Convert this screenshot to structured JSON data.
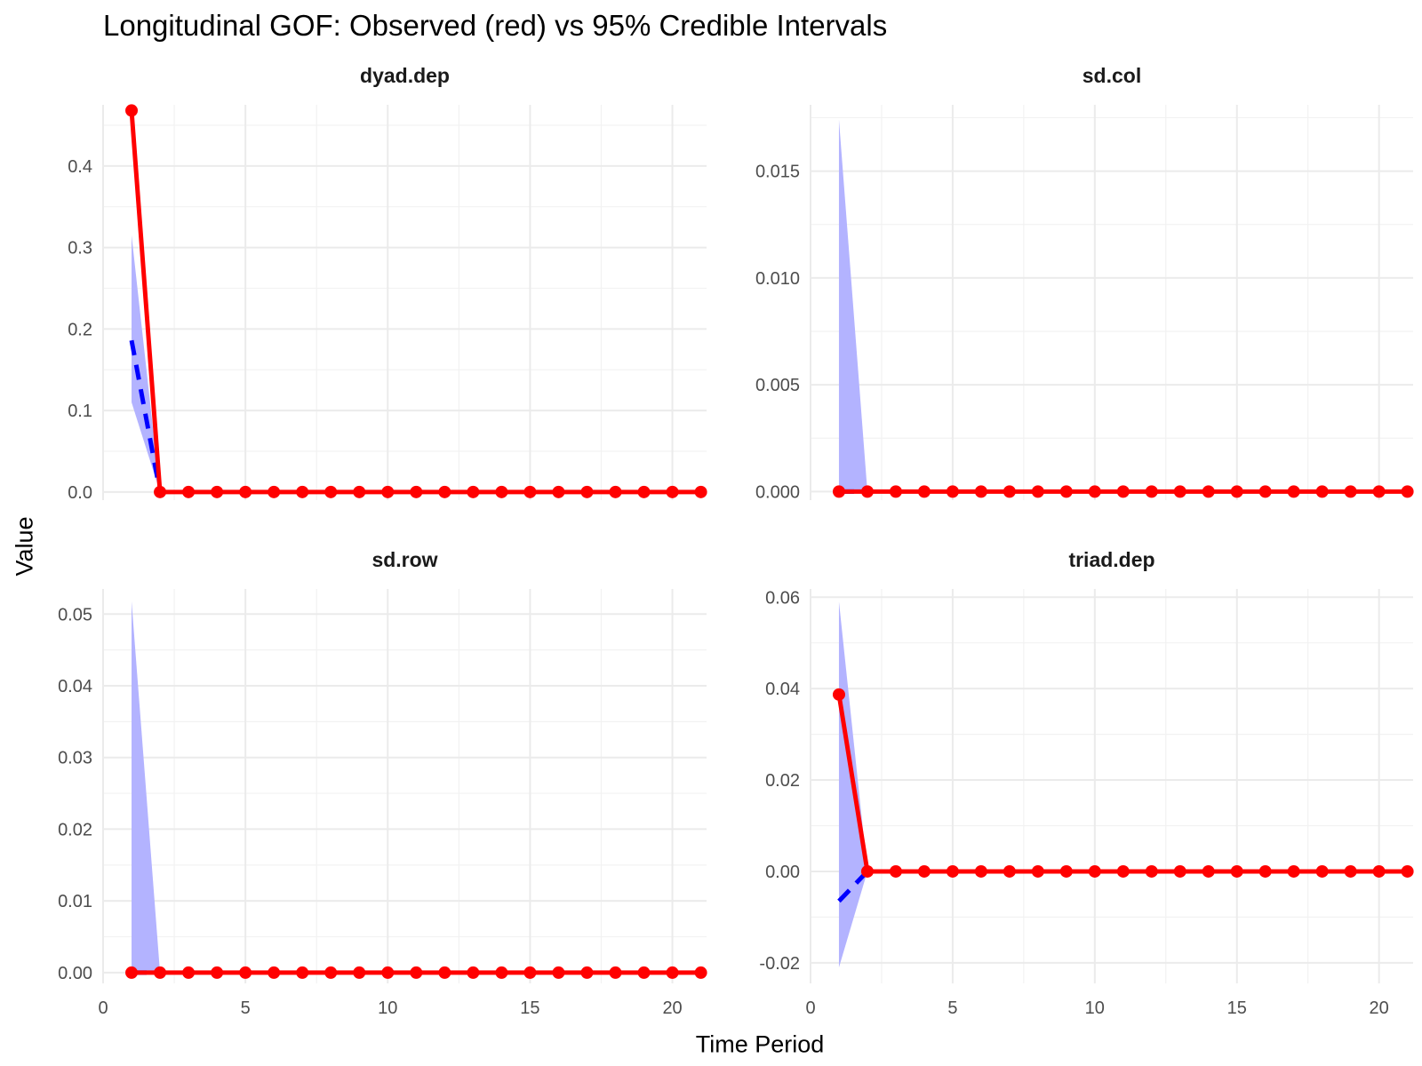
{
  "chart_data": {
    "type": "line",
    "title": "Longitudinal GOF: Observed (red) vs 95% Credible Intervals",
    "xlabel": "Time Period",
    "ylabel": "Value",
    "grid": true,
    "colors": {
      "observed": "#ff0000",
      "mean": "#0000ff",
      "interval": "#b3b3ff"
    },
    "x_ticks": [
      "0",
      "5",
      "10",
      "15",
      "20"
    ],
    "facets": [
      {
        "name": "dyad.dep",
        "xlim": [
          0,
          21.2
        ],
        "ylim": [
          -0.01,
          0.475
        ],
        "y_ticks": [
          {
            "v": 0.0,
            "label": "0.0"
          },
          {
            "v": 0.1,
            "label": "0.1"
          },
          {
            "v": 0.2,
            "label": "0.2"
          },
          {
            "v": 0.3,
            "label": "0.3"
          },
          {
            "v": 0.4,
            "label": "0.4"
          }
        ],
        "observed": {
          "x": [
            1,
            2,
            3,
            4,
            5,
            6,
            7,
            8,
            9,
            10,
            11,
            12,
            13,
            14,
            15,
            16,
            17,
            18,
            19,
            20,
            21
          ],
          "y": [
            0.468,
            0,
            0,
            0,
            0,
            0,
            0,
            0,
            0,
            0,
            0,
            0,
            0,
            0,
            0,
            0,
            0,
            0,
            0,
            0,
            0
          ]
        },
        "mean": {
          "x": [
            1,
            2
          ],
          "y": [
            0.186,
            0
          ]
        },
        "interval": {
          "x": [
            1,
            2
          ],
          "lower": [
            0.11,
            0
          ],
          "upper": [
            0.315,
            0
          ]
        }
      },
      {
        "name": "sd.col",
        "xlim": [
          0,
          21.2
        ],
        "ylim": [
          -0.0004,
          0.0181
        ],
        "y_ticks": [
          {
            "v": 0.0,
            "label": "0.000"
          },
          {
            "v": 0.005,
            "label": "0.005"
          },
          {
            "v": 0.01,
            "label": "0.010"
          },
          {
            "v": 0.015,
            "label": "0.015"
          }
        ],
        "observed": {
          "x": [
            1,
            2,
            3,
            4,
            5,
            6,
            7,
            8,
            9,
            10,
            11,
            12,
            13,
            14,
            15,
            16,
            17,
            18,
            19,
            20,
            21
          ],
          "y": [
            0,
            0,
            0,
            0,
            0,
            0,
            0,
            0,
            0,
            0,
            0,
            0,
            0,
            0,
            0,
            0,
            0,
            0,
            0,
            0,
            0
          ]
        },
        "mean": {
          "x": [
            1,
            2
          ],
          "y": [
            0,
            0
          ]
        },
        "interval": {
          "x": [
            1,
            2
          ],
          "lower": [
            0,
            0
          ],
          "upper": [
            0.0174,
            0
          ]
        }
      },
      {
        "name": "sd.row",
        "xlim": [
          0,
          21.2
        ],
        "ylim": [
          -0.0015,
          0.0535
        ],
        "y_ticks": [
          {
            "v": 0.0,
            "label": "0.00"
          },
          {
            "v": 0.01,
            "label": "0.01"
          },
          {
            "v": 0.02,
            "label": "0.02"
          },
          {
            "v": 0.03,
            "label": "0.03"
          },
          {
            "v": 0.04,
            "label": "0.04"
          },
          {
            "v": 0.05,
            "label": "0.05"
          }
        ],
        "observed": {
          "x": [
            1,
            2,
            3,
            4,
            5,
            6,
            7,
            8,
            9,
            10,
            11,
            12,
            13,
            14,
            15,
            16,
            17,
            18,
            19,
            20,
            21
          ],
          "y": [
            0,
            0,
            0,
            0,
            0,
            0,
            0,
            0,
            0,
            0,
            0,
            0,
            0,
            0,
            0,
            0,
            0,
            0,
            0,
            0,
            0
          ]
        },
        "mean": {
          "x": [
            1,
            2
          ],
          "y": [
            0,
            0
          ]
        },
        "interval": {
          "x": [
            1,
            2
          ],
          "lower": [
            0,
            0
          ],
          "upper": [
            0.0518,
            0
          ]
        }
      },
      {
        "name": "triad.dep",
        "xlim": [
          0,
          21.2
        ],
        "ylim": [
          -0.0245,
          0.0618
        ],
        "y_ticks": [
          {
            "v": -0.02,
            "label": "-0.02"
          },
          {
            "v": 0.0,
            "label": "0.00"
          },
          {
            "v": 0.02,
            "label": "0.02"
          },
          {
            "v": 0.04,
            "label": "0.04"
          },
          {
            "v": 0.06,
            "label": "0.06"
          }
        ],
        "observed": {
          "x": [
            1,
            2,
            3,
            4,
            5,
            6,
            7,
            8,
            9,
            10,
            11,
            12,
            13,
            14,
            15,
            16,
            17,
            18,
            19,
            20,
            21
          ],
          "y": [
            0.0387,
            0,
            0,
            0,
            0,
            0,
            0,
            0,
            0,
            0,
            0,
            0,
            0,
            0,
            0,
            0,
            0,
            0,
            0,
            0,
            0
          ]
        },
        "mean": {
          "x": [
            1,
            2
          ],
          "y": [
            -0.0065,
            0
          ]
        },
        "interval": {
          "x": [
            1,
            2
          ],
          "lower": [
            -0.021,
            0
          ],
          "upper": [
            0.059,
            0
          ]
        }
      }
    ]
  }
}
